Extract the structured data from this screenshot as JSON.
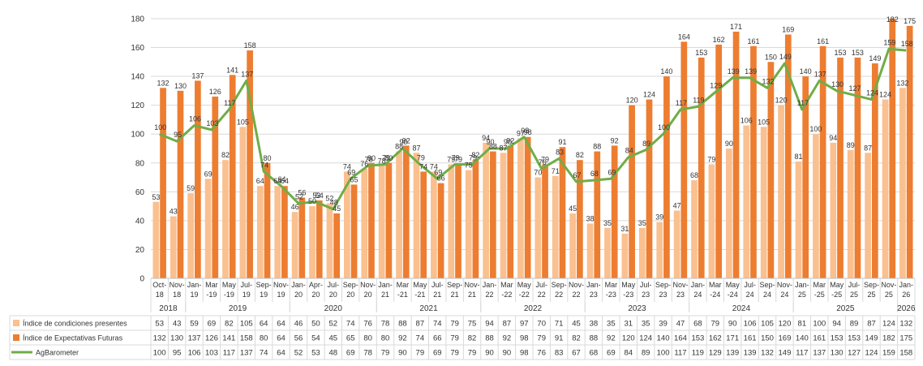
{
  "chart_data": {
    "type": "bar",
    "ylim": [
      0,
      180
    ],
    "yticks": [
      0,
      20,
      40,
      60,
      80,
      100,
      120,
      140,
      160,
      180
    ],
    "grid": true,
    "legend": "table-left",
    "categories": [
      [
        "Oct-",
        "18"
      ],
      [
        "Nov-",
        "18"
      ],
      [
        "Jan-",
        "19"
      ],
      [
        "Mar",
        "-19"
      ],
      [
        "May",
        "-19"
      ],
      [
        "Jul-",
        "19"
      ],
      [
        "Sep-",
        "19"
      ],
      [
        "Nov-",
        "19"
      ],
      [
        "Jan-",
        "20"
      ],
      [
        "Apr-",
        "20"
      ],
      [
        "Jul-",
        "20"
      ],
      [
        "Sep-",
        "20"
      ],
      [
        "Nov-",
        "20"
      ],
      [
        "Jan-",
        "21"
      ],
      [
        "Mar",
        "-21"
      ],
      [
        "May",
        "-21"
      ],
      [
        "Jul-",
        "21"
      ],
      [
        "Sep-",
        "21"
      ],
      [
        "Nov-",
        "21"
      ],
      [
        "Jan-",
        "22"
      ],
      [
        "Mar",
        "-22"
      ],
      [
        "May",
        "-22"
      ],
      [
        "Jul-",
        "22"
      ],
      [
        "Sep-",
        "22"
      ],
      [
        "Nov-",
        "22"
      ],
      [
        "Jan-",
        "23"
      ],
      [
        "Mar",
        "-23"
      ],
      [
        "May",
        "-23"
      ],
      [
        "Jul-",
        "23"
      ],
      [
        "Sep-",
        "23"
      ],
      [
        "Nov-",
        "23"
      ],
      [
        "Jan-",
        "24"
      ],
      [
        "Mar",
        "-24"
      ],
      [
        "May",
        "-24"
      ],
      [
        "Jul-",
        "24"
      ],
      [
        "Sep-",
        "24"
      ],
      [
        "Nov-",
        "24"
      ],
      [
        "Jan-",
        "25"
      ],
      [
        "Mar",
        "-25"
      ],
      [
        "May",
        "-25"
      ],
      [
        "Jul-",
        "25"
      ],
      [
        "Sep-",
        "25"
      ],
      [
        "Nov-",
        "25"
      ],
      [
        "Jan-",
        "26"
      ]
    ],
    "years": [
      {
        "label": "2018",
        "start": 0,
        "end": 1
      },
      {
        "label": "2019",
        "start": 2,
        "end": 7
      },
      {
        "label": "2020",
        "start": 8,
        "end": 12
      },
      {
        "label": "2021",
        "start": 13,
        "end": 18
      },
      {
        "label": "2022",
        "start": 19,
        "end": 24
      },
      {
        "label": "2023",
        "start": 25,
        "end": 30
      },
      {
        "label": "2024",
        "start": 31,
        "end": 36
      },
      {
        "label": "2025",
        "start": 37,
        "end": 42
      },
      {
        "label": "2026",
        "start": 43,
        "end": 43
      }
    ],
    "series": [
      {
        "name": "Índice de condiciones presentes",
        "kind": "bar",
        "color": "#FAC08F",
        "values": [
          53,
          43,
          59,
          69,
          82,
          105,
          64,
          64,
          46,
          50,
          52,
          74,
          76,
          78,
          88,
          87,
          74,
          79,
          75,
          94,
          87,
          97,
          70,
          71,
          45,
          38,
          35,
          31,
          35,
          39,
          47,
          68,
          79,
          90,
          106,
          105,
          120,
          81,
          100,
          94,
          89,
          87,
          124,
          132
        ]
      },
      {
        "name": "Índice de Expectativas Futuras",
        "kind": "bar",
        "color": "#ED7D31",
        "values": [
          132,
          130,
          137,
          126,
          141,
          158,
          80,
          64,
          56,
          54,
          45,
          65,
          80,
          80,
          92,
          74,
          66,
          79,
          82,
          88,
          92,
          98,
          79,
          91,
          82,
          88,
          92,
          120,
          124,
          140,
          164,
          153,
          162,
          171,
          161,
          150,
          169,
          140,
          161,
          153,
          153,
          149,
          182,
          175
        ]
      },
      {
        "name": "AgBarometer",
        "kind": "line",
        "color": "#70AD47",
        "values": [
          100,
          95,
          106,
          103,
          117,
          137,
          74,
          64,
          52,
          53,
          48,
          69,
          78,
          79,
          90,
          79,
          69,
          79,
          79,
          90,
          90,
          98,
          76,
          83,
          67,
          68,
          69,
          84,
          89,
          100,
          117,
          119,
          129,
          139,
          139,
          132,
          149,
          117,
          137,
          130,
          127,
          124,
          159,
          158
        ]
      }
    ]
  }
}
